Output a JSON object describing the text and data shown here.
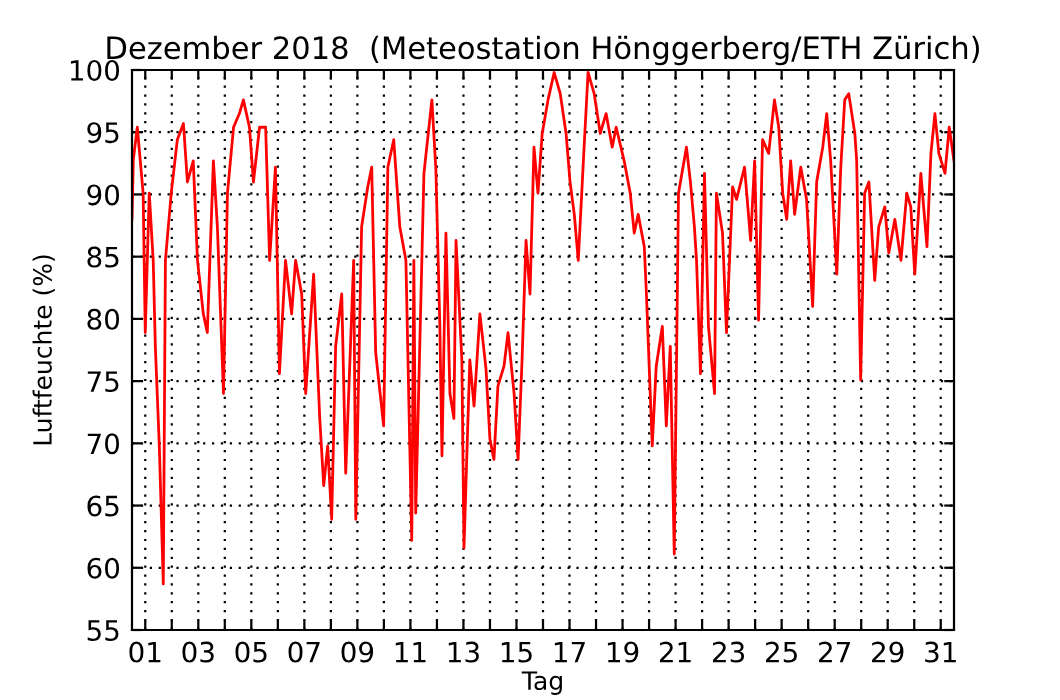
{
  "chart_data": {
    "type": "line",
    "title": "Dezember 2018  (Meteostation Hönggerberg/ETH Zürich)",
    "xlabel": "Tag",
    "ylabel": "Luftfeuchte (%)",
    "x": [
      0.5,
      0.55,
      0.7,
      0.92,
      1.0,
      1.15,
      1.3,
      1.38,
      1.53,
      1.68,
      1.76,
      1.98,
      2.21,
      2.44,
      2.59,
      2.81,
      2.97,
      3.19,
      3.34,
      3.57,
      3.72,
      3.95,
      4.1,
      4.33,
      4.55,
      4.7,
      4.93,
      5.08,
      5.31,
      5.54,
      5.69,
      5.91,
      6.06,
      6.29,
      6.52,
      6.67,
      6.9,
      7.05,
      7.35,
      7.58,
      7.73,
      7.88,
      8.03,
      8.18,
      8.41,
      8.56,
      8.86,
      8.94,
      9.16,
      9.39,
      9.54,
      9.69,
      9.99,
      10.15,
      10.37,
      10.6,
      10.83,
      11.05,
      11.13,
      11.2,
      11.51,
      11.81,
      11.96,
      12.11,
      12.19,
      12.34,
      12.49,
      12.64,
      12.72,
      12.94,
      13.02,
      13.24,
      13.4,
      13.62,
      13.85,
      14.0,
      14.15,
      14.3,
      14.53,
      14.68,
      14.91,
      15.06,
      15.21,
      15.36,
      15.51,
      15.66,
      15.81,
      15.97,
      16.19,
      16.42,
      16.65,
      16.87,
      17.02,
      17.18,
      17.33,
      17.55,
      17.7,
      17.93,
      18.16,
      18.38,
      18.61,
      18.76,
      19.06,
      19.29,
      19.44,
      19.59,
      19.82,
      19.9,
      20.12,
      20.27,
      20.5,
      20.65,
      20.8,
      20.95,
      21.11,
      21.41,
      21.56,
      21.71,
      21.79,
      21.94,
      22.09,
      22.24,
      22.47,
      22.54,
      22.77,
      22.92,
      23.15,
      23.3,
      23.6,
      23.83,
      23.98,
      24.13,
      24.28,
      24.51,
      24.73,
      24.89,
      25.04,
      25.19,
      25.34,
      25.49,
      25.72,
      25.94,
      26.17,
      26.32,
      26.55,
      26.7,
      26.85,
      27.08,
      27.23,
      27.38,
      27.53,
      27.76,
      27.83,
      27.98,
      28.13,
      28.29,
      28.51,
      28.66,
      28.89,
      29.04,
      29.27,
      29.5,
      29.72,
      29.87,
      30.02,
      30.25,
      30.48,
      30.63,
      30.78,
      30.93,
      31.16,
      31.32,
      31.5
    ],
    "series": [
      {
        "color": "#ff0000",
        "values": [
          88.0,
          92.8,
          95.4,
          90.1,
          78.9,
          90.1,
          84.7,
          77.8,
          69.8,
          58.7,
          84.7,
          90.1,
          94.4,
          95.7,
          91.0,
          92.7,
          84.7,
          80.4,
          78.9,
          92.7,
          87.4,
          74.0,
          90.1,
          95.4,
          96.5,
          97.6,
          95.4,
          91.0,
          95.4,
          95.4,
          84.7,
          92.2,
          75.6,
          84.7,
          80.4,
          84.7,
          82.0,
          74.0,
          83.6,
          72.0,
          66.6,
          69.8,
          63.9,
          77.8,
          82.0,
          67.6,
          84.7,
          63.9,
          87.4,
          90.6,
          92.2,
          77.3,
          71.4,
          92.2,
          94.4,
          87.4,
          84.7,
          62.2,
          84.7,
          64.4,
          91.7,
          97.6,
          92.0,
          79.4,
          69.0,
          86.9,
          74.0,
          72.0,
          86.3,
          76.7,
          61.6,
          76.7,
          73.0,
          80.4,
          76.0,
          70.3,
          68.7,
          74.6,
          76.2,
          78.9,
          74.0,
          68.7,
          76.7,
          86.3,
          82.0,
          93.8,
          90.1,
          94.9,
          97.6,
          99.8,
          98.1,
          94.9,
          91.0,
          88.4,
          84.7,
          93.8,
          99.8,
          98.1,
          94.9,
          96.5,
          93.8,
          95.4,
          92.7,
          90.1,
          86.9,
          88.4,
          85.8,
          82.0,
          69.8,
          76.2,
          79.4,
          71.4,
          77.8,
          61.1,
          90.1,
          93.8,
          91.0,
          87.4,
          84.7,
          75.6,
          91.7,
          79.4,
          74.0,
          90.1,
          86.9,
          78.9,
          90.6,
          89.6,
          92.2,
          86.3,
          92.7,
          79.9,
          94.4,
          93.3,
          97.6,
          95.4,
          90.1,
          88.0,
          92.7,
          88.4,
          92.2,
          89.6,
          81.0,
          91.0,
          93.8,
          96.5,
          92.7,
          83.6,
          92.2,
          97.6,
          98.1,
          94.9,
          92.7,
          75.1,
          90.1,
          91.0,
          83.1,
          87.4,
          89.0,
          85.3,
          88.0,
          84.7,
          90.1,
          89.0,
          83.6,
          91.7,
          85.8,
          93.3,
          96.5,
          93.3,
          91.7,
          95.4,
          92.7
        ]
      }
    ],
    "xlim": [
      0.5,
      31.5
    ],
    "xticks": [
      {
        "value": 1,
        "label": "01"
      },
      {
        "value": 2,
        "label": null
      },
      {
        "value": 3,
        "label": "03"
      },
      {
        "value": 4,
        "label": null
      },
      {
        "value": 5,
        "label": "05"
      },
      {
        "value": 6,
        "label": null
      },
      {
        "value": 7,
        "label": "07"
      },
      {
        "value": 8,
        "label": null
      },
      {
        "value": 9,
        "label": "09"
      },
      {
        "value": 10,
        "label": null
      },
      {
        "value": 11,
        "label": "11"
      },
      {
        "value": 12,
        "label": null
      },
      {
        "value": 13,
        "label": "13"
      },
      {
        "value": 14,
        "label": null
      },
      {
        "value": 15,
        "label": "15"
      },
      {
        "value": 16,
        "label": null
      },
      {
        "value": 17,
        "label": "17"
      },
      {
        "value": 18,
        "label": null
      },
      {
        "value": 19,
        "label": "19"
      },
      {
        "value": 20,
        "label": null
      },
      {
        "value": 21,
        "label": "21"
      },
      {
        "value": 22,
        "label": null
      },
      {
        "value": 23,
        "label": "23"
      },
      {
        "value": 24,
        "label": null
      },
      {
        "value": 25,
        "label": "25"
      },
      {
        "value": 26,
        "label": null
      },
      {
        "value": 27,
        "label": "27"
      },
      {
        "value": 28,
        "label": null
      },
      {
        "value": 29,
        "label": "29"
      },
      {
        "value": 30,
        "label": null
      },
      {
        "value": 31,
        "label": "31"
      }
    ],
    "ylim": [
      55,
      100
    ],
    "yticks": [
      55,
      60,
      65,
      70,
      75,
      80,
      85,
      90,
      95,
      100
    ],
    "grid": true,
    "line_style": "solid",
    "marker": "none"
  }
}
